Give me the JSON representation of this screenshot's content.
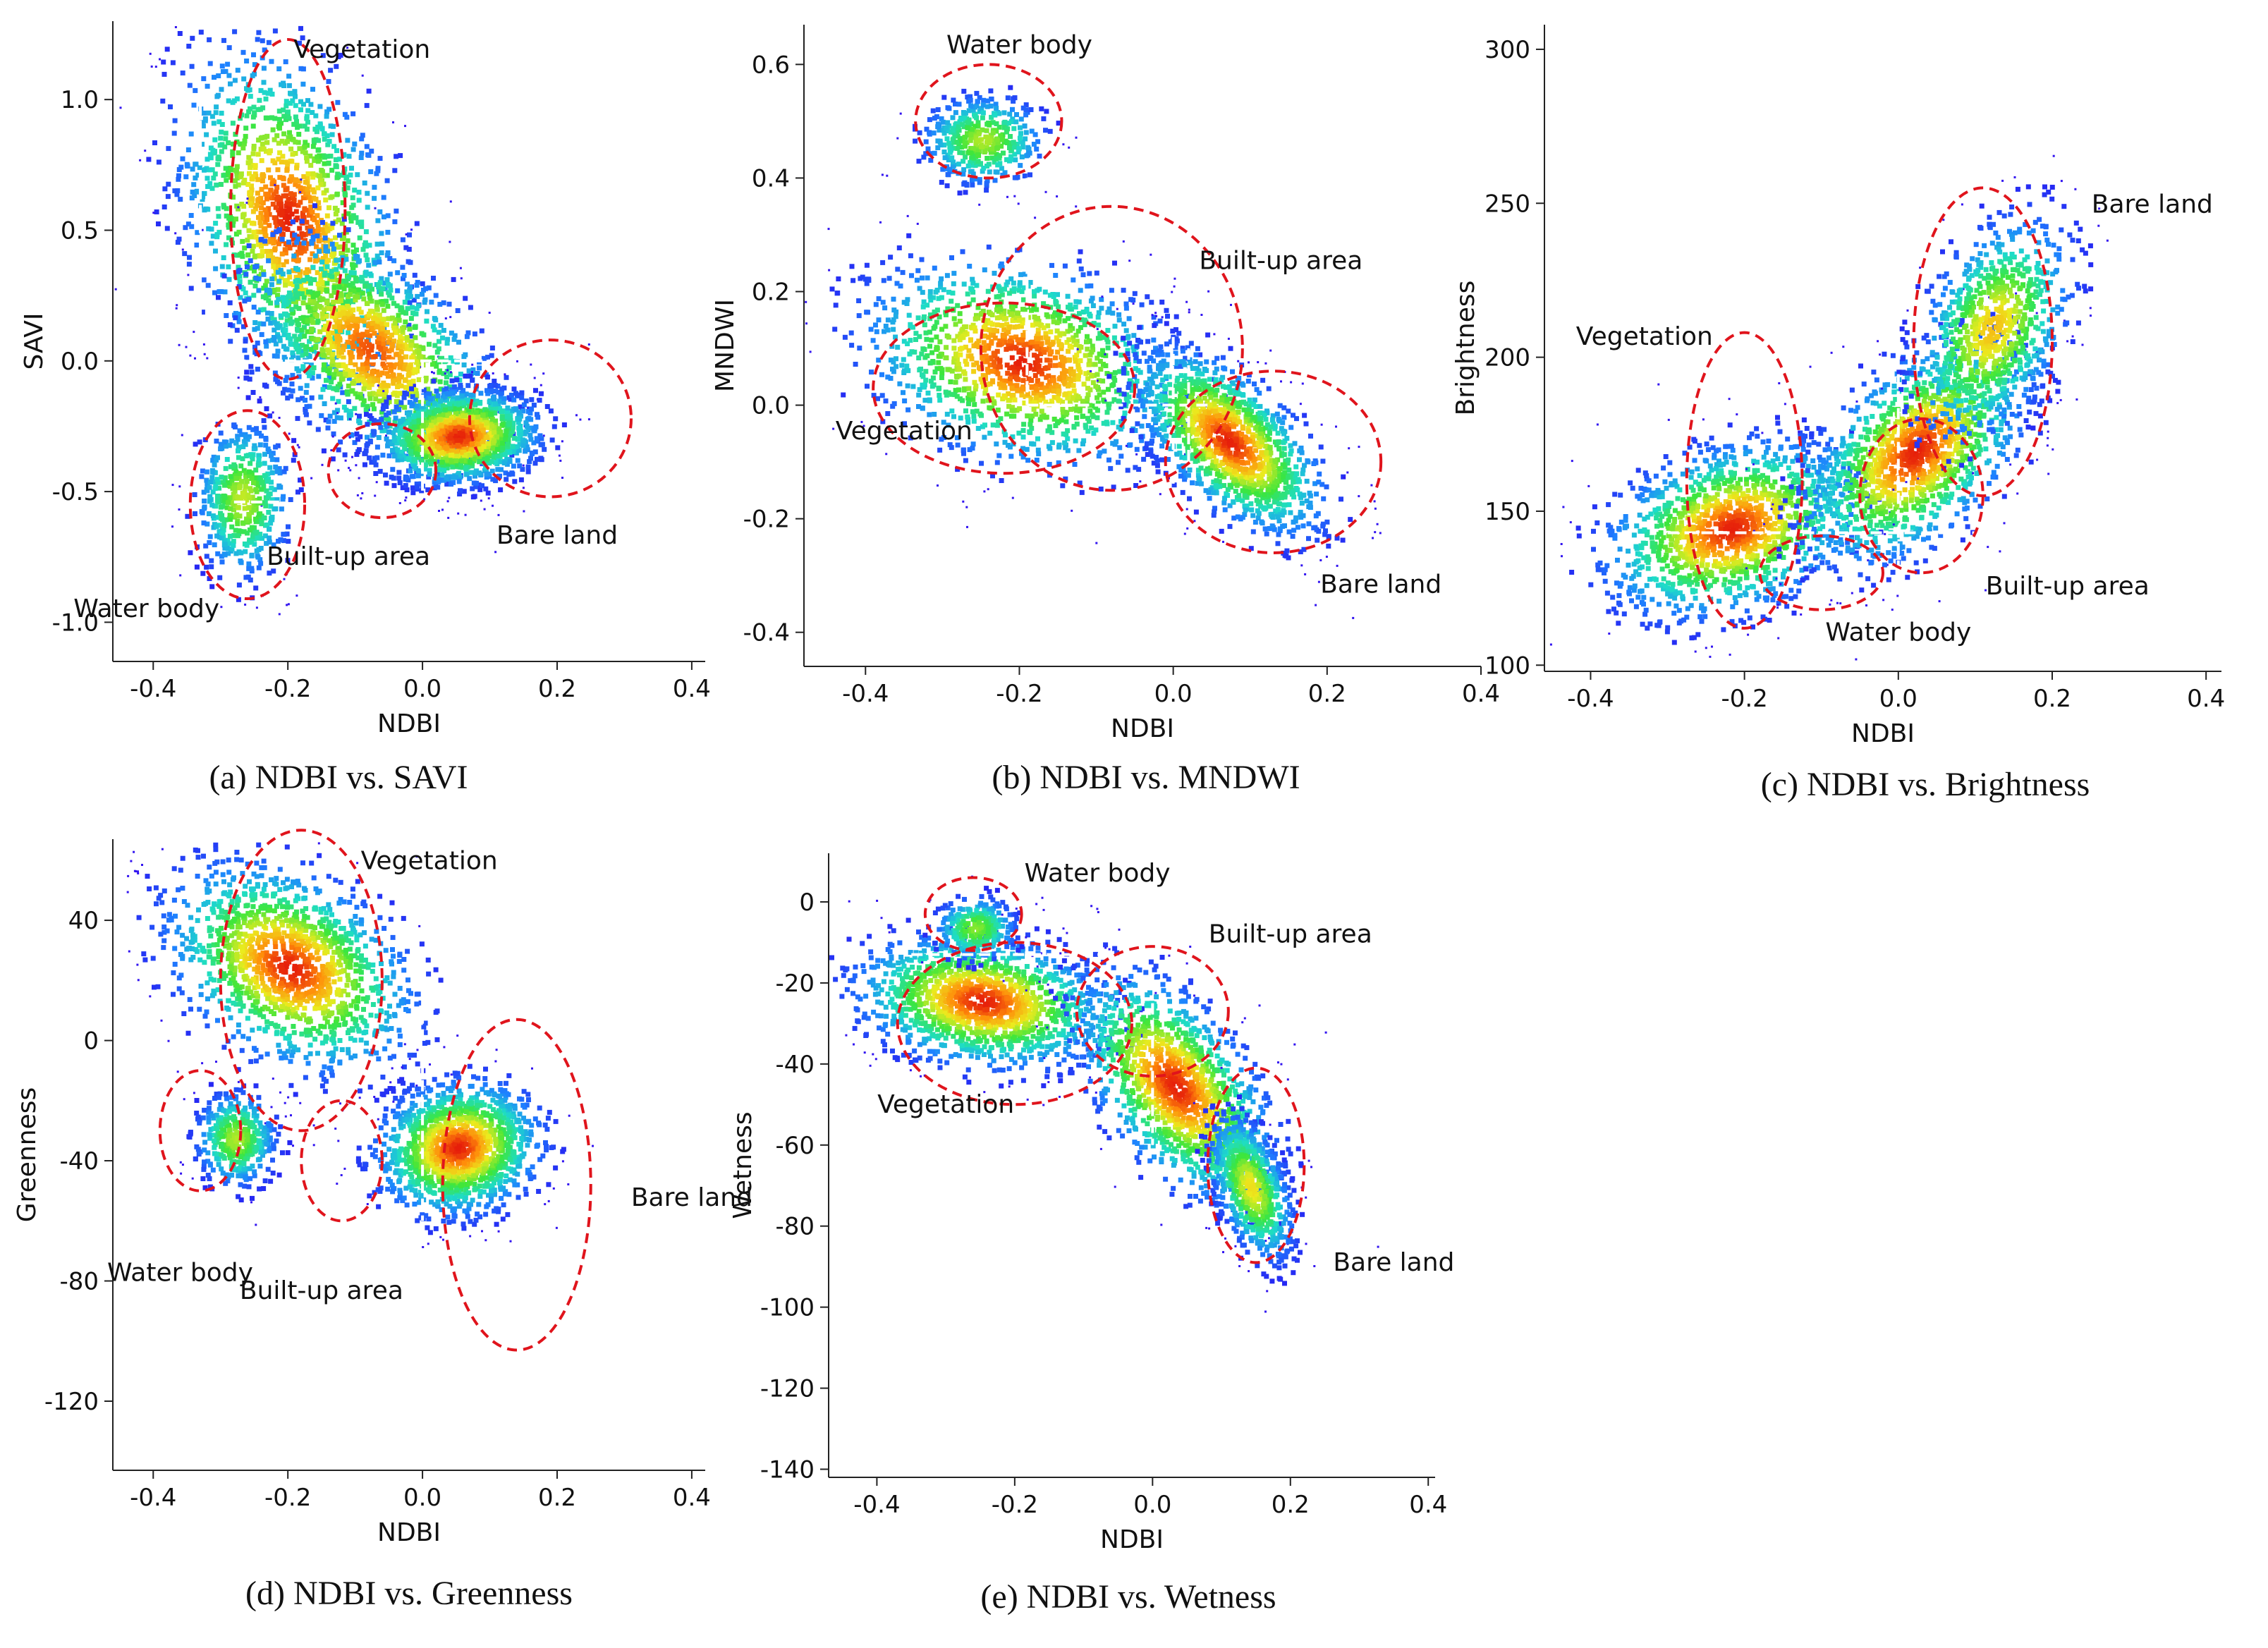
{
  "chart_data": [
    {
      "id": "a",
      "type": "scatter",
      "caption": "(a) NDBI vs. SAVI",
      "xlabel": "NDBI",
      "ylabel": "SAVI",
      "xlim": [
        -0.46,
        0.42
      ],
      "ylim": [
        -1.15,
        1.3
      ],
      "xticks": [
        -0.4,
        -0.2,
        0.0,
        0.2,
        0.4
      ],
      "xtick_labels": [
        "-0.4",
        "-0.2",
        "0.0",
        "0.2",
        "0.4"
      ],
      "yticks": [
        -1.0,
        -0.5,
        0.0,
        0.5,
        1.0
      ],
      "ytick_labels": [
        "-1.0",
        "-0.5",
        "0.0",
        "0.5",
        "1.0"
      ],
      "clusters": [
        {
          "x": -0.2,
          "y": 0.55,
          "sx": 0.08,
          "sy": 0.32,
          "r": -0.35,
          "w": 1.0
        },
        {
          "x": -0.08,
          "y": 0.05,
          "sx": 0.09,
          "sy": 0.22,
          "r": -0.5,
          "w": 0.9
        },
        {
          "x": 0.05,
          "y": -0.28,
          "sx": 0.06,
          "sy": 0.09,
          "r": 0.1,
          "w": 1.0
        },
        {
          "x": -0.27,
          "y": -0.52,
          "sx": 0.035,
          "sy": 0.15,
          "r": 0.0,
          "w": 0.35
        }
      ],
      "guides": [
        [
          -0.33,
          1.05,
          -0.33,
          0.0
        ],
        [
          -0.33,
          0.0,
          0.19,
          0.0
        ],
        [
          0.0,
          0.0,
          0.0,
          -0.5
        ],
        [
          -0.28,
          -0.54,
          -0.21,
          -0.54
        ]
      ],
      "regions": [
        {
          "label": "Vegetation",
          "cx": -0.2,
          "cy": 0.58,
          "rx": 0.085,
          "ry": 0.65,
          "tx": -0.09,
          "ty": 1.16
        },
        {
          "label": "Water body",
          "cx": -0.26,
          "cy": -0.55,
          "rx": 0.085,
          "ry": 0.36,
          "tx": -0.41,
          "ty": -0.98
        },
        {
          "label": "Built-up area",
          "cx": -0.06,
          "cy": -0.42,
          "rx": 0.08,
          "ry": 0.18,
          "tx": -0.11,
          "ty": -0.78
        },
        {
          "label": "Bare land",
          "cx": 0.19,
          "cy": -0.22,
          "rx": 0.12,
          "ry": 0.3,
          "tx": 0.2,
          "ty": -0.7
        }
      ]
    },
    {
      "id": "b",
      "type": "scatter",
      "caption": "(b) NDBI vs. MNDWI",
      "xlabel": "NDBI",
      "ylabel": "MNDWI",
      "xlim": [
        -0.48,
        0.4
      ],
      "ylim": [
        -0.46,
        0.67
      ],
      "xticks": [
        -0.4,
        -0.2,
        0.0,
        0.2,
        0.4
      ],
      "xtick_labels": [
        "-0.4",
        "-0.2",
        "0.0",
        "0.2",
        "0.4"
      ],
      "yticks": [
        -0.4,
        -0.2,
        0.0,
        0.2,
        0.4,
        0.6
      ],
      "ytick_labels": [
        "-0.4",
        "-0.2",
        "0.0",
        "0.2",
        "0.4",
        "0.6"
      ],
      "clusters": [
        {
          "x": -0.2,
          "y": 0.08,
          "sx": 0.1,
          "sy": 0.09,
          "r": -0.25,
          "w": 1.0
        },
        {
          "x": 0.07,
          "y": -0.06,
          "sx": 0.06,
          "sy": 0.08,
          "r": -0.6,
          "w": 1.0
        },
        {
          "x": -0.25,
          "y": 0.47,
          "sx": 0.04,
          "sy": 0.04,
          "r": 0.0,
          "w": 0.3
        }
      ],
      "guides": [
        [
          -0.19,
          0.4,
          -0.19,
          0.0
        ],
        [
          -0.19,
          0.0,
          0.05,
          0.0
        ],
        [
          0.0,
          0.12,
          0.0,
          -0.22
        ],
        [
          0.02,
          0.1,
          0.02,
          -0.1
        ]
      ],
      "regions": [
        {
          "label": "Water body",
          "cx": -0.24,
          "cy": 0.5,
          "rx": 0.095,
          "ry": 0.1,
          "tx": -0.2,
          "ty": 0.62
        },
        {
          "label": "Built-up area",
          "cx": -0.08,
          "cy": 0.1,
          "rx": 0.17,
          "ry": 0.25,
          "tx": 0.14,
          "ty": 0.24
        },
        {
          "label": "Vegetation",
          "cx": -0.22,
          "cy": 0.03,
          "rx": 0.17,
          "ry": 0.15,
          "tx": -0.35,
          "ty": -0.06
        },
        {
          "label": "Bare land",
          "cx": 0.13,
          "cy": -0.1,
          "rx": 0.14,
          "ry": 0.16,
          "tx": 0.27,
          "ty": -0.33
        }
      ]
    },
    {
      "id": "c",
      "type": "scatter",
      "caption": "(c) NDBI vs. Brightness",
      "xlabel": "NDBI",
      "ylabel": "Brightness",
      "xlim": [
        -0.46,
        0.42
      ],
      "ylim": [
        98,
        308
      ],
      "xticks": [
        -0.4,
        -0.2,
        0.0,
        0.2,
        0.4
      ],
      "xtick_labels": [
        "-0.4",
        "-0.2",
        "0.0",
        "0.2",
        "0.4"
      ],
      "yticks": [
        100,
        150,
        200,
        250,
        300
      ],
      "ytick_labels": [
        "100",
        "150",
        "200",
        "250",
        "300"
      ],
      "clusters": [
        {
          "x": -0.22,
          "y": 145,
          "sx": 0.08,
          "sy": 14,
          "r": 0.3,
          "w": 1.0
        },
        {
          "x": 0.02,
          "y": 170,
          "sx": 0.07,
          "sy": 18,
          "r": 0.5,
          "w": 1.0
        },
        {
          "x": 0.12,
          "y": 210,
          "sx": 0.05,
          "sy": 18,
          "r": 0.4,
          "w": 0.6
        }
      ],
      "guides": [
        [
          -0.3,
          143,
          0.12,
          143
        ],
        [
          0.0,
          200,
          0.0,
          130
        ]
      ],
      "regions": [
        {
          "label": "Vegetation",
          "cx": -0.2,
          "cy": 160,
          "rx": 0.075,
          "ry": 48,
          "tx": -0.33,
          "ty": 204
        },
        {
          "label": "Bare land",
          "cx": 0.11,
          "cy": 205,
          "rx": 0.09,
          "ry": 50,
          "tx": 0.33,
          "ty": 247
        },
        {
          "label": "Built-up area",
          "cx": 0.03,
          "cy": 155,
          "rx": 0.08,
          "ry": 25,
          "tx": 0.22,
          "ty": 123
        },
        {
          "label": "Water body",
          "cx": -0.1,
          "cy": 130,
          "rx": 0.08,
          "ry": 12,
          "tx": 0.0,
          "ty": 108
        }
      ]
    },
    {
      "id": "d",
      "type": "scatter",
      "caption": "(d) NDBI vs. Greenness",
      "xlabel": "NDBI",
      "ylabel": "Greenness",
      "xlim": [
        -0.46,
        0.42
      ],
      "ylim": [
        -143,
        67
      ],
      "xticks": [
        -0.4,
        -0.2,
        0.0,
        0.2,
        0.4
      ],
      "xtick_labels": [
        "-0.4",
        "-0.2",
        "0.0",
        "0.2",
        "0.4"
      ],
      "yticks": [
        -120,
        -80,
        -40,
        0,
        40
      ],
      "ytick_labels": [
        "-120",
        "-80",
        "-40",
        "0",
        "40"
      ],
      "clusters": [
        {
          "x": -0.2,
          "y": 25,
          "sx": 0.09,
          "sy": 17,
          "r": -0.35,
          "w": 1.0
        },
        {
          "x": 0.05,
          "y": -35,
          "sx": 0.06,
          "sy": 11,
          "r": 0.1,
          "w": 1.0
        },
        {
          "x": -0.28,
          "y": -32,
          "sx": 0.03,
          "sy": 8,
          "r": 0.0,
          "w": 0.3
        }
      ],
      "guides": [
        [
          0.0,
          15,
          0.0,
          -60
        ]
      ],
      "regions": [
        {
          "label": "Vegetation",
          "cx": -0.18,
          "cy": 20,
          "rx": 0.12,
          "ry": 50,
          "tx": 0.01,
          "ty": 57
        },
        {
          "label": "Water body",
          "cx": -0.33,
          "cy": -30,
          "rx": 0.06,
          "ry": 20,
          "tx": -0.36,
          "ty": -80
        },
        {
          "label": "Built-up area",
          "cx": -0.12,
          "cy": -40,
          "rx": 0.06,
          "ry": 20,
          "tx": -0.15,
          "ty": -86
        },
        {
          "label": "Bare land",
          "cx": 0.14,
          "cy": -48,
          "rx": 0.11,
          "ry": 55,
          "tx": 0.4,
          "ty": -55
        }
      ]
    },
    {
      "id": "e",
      "type": "scatter",
      "caption": "(e) NDBI vs. Wetness",
      "xlabel": "NDBI",
      "ylabel": "Wetness",
      "xlim": [
        -0.47,
        0.41
      ],
      "ylim": [
        -142,
        12
      ],
      "xticks": [
        -0.4,
        -0.2,
        0.0,
        0.2,
        0.4
      ],
      "xtick_labels": [
        "-0.4",
        "-0.2",
        "0.0",
        "0.2",
        "0.4"
      ],
      "yticks": [
        -140,
        -120,
        -100,
        -80,
        -60,
        -40,
        -20,
        0
      ],
      "ytick_labels": [
        "-140",
        "-120",
        "-100",
        "-80",
        "-60",
        "-40",
        "-20",
        "0"
      ],
      "clusters": [
        {
          "x": -0.25,
          "y": -24,
          "sx": 0.09,
          "sy": 8,
          "r": -0.2,
          "w": 1.0
        },
        {
          "x": 0.03,
          "y": -45,
          "sx": 0.07,
          "sy": 14,
          "r": -0.55,
          "w": 1.0
        },
        {
          "x": 0.14,
          "y": -70,
          "sx": 0.03,
          "sy": 9,
          "r": -0.5,
          "w": 0.5
        },
        {
          "x": -0.26,
          "y": -6,
          "sx": 0.03,
          "sy": 4,
          "r": 0.0,
          "w": 0.2
        }
      ],
      "guides": [
        [
          -0.35,
          -13,
          -0.07,
          -13
        ],
        [
          0.0,
          -25,
          0.0,
          -60
        ]
      ],
      "regions": [
        {
          "label": "Water body",
          "cx": -0.26,
          "cy": -3,
          "rx": 0.07,
          "ry": 9,
          "tx": -0.08,
          "ty": 5
        },
        {
          "label": "Built-up area",
          "cx": 0.0,
          "cy": -27,
          "rx": 0.11,
          "ry": 16,
          "tx": 0.2,
          "ty": -10
        },
        {
          "label": "Vegetation",
          "cx": -0.2,
          "cy": -30,
          "rx": 0.17,
          "ry": 20,
          "tx": -0.3,
          "ty": -52
        },
        {
          "label": "Bare land",
          "cx": 0.15,
          "cy": -65,
          "rx": 0.07,
          "ry": 24,
          "tx": 0.35,
          "ty": -91
        }
      ]
    }
  ]
}
